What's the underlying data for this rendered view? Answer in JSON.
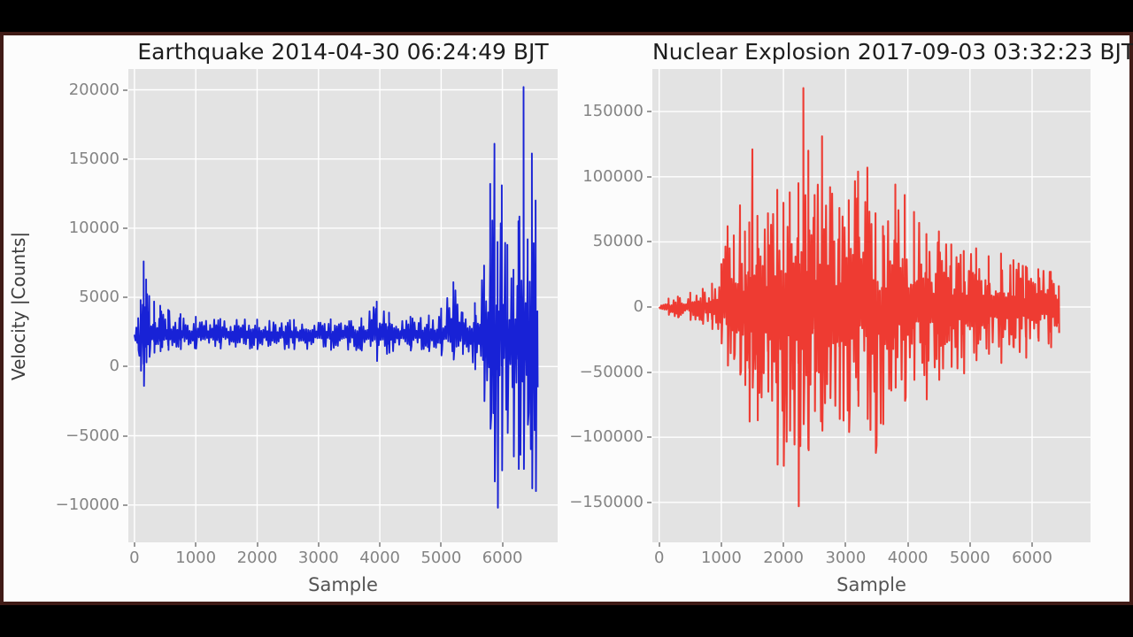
{
  "style": {
    "figure_background": "#fcfcfc",
    "letterbox_color": "#000000",
    "frame_border_color": "#401b16",
    "plot_background": "#e3e3e3",
    "grid_color": "#ffffff",
    "tick_color": "#848484"
  },
  "chart_data": [
    {
      "type": "line",
      "title": "Earthquake 2014-04-30 06:24:49 BJT",
      "xlabel": "Sample",
      "ylabel": "Velocity |Counts|",
      "line_color": "#1822d6",
      "xlim": [
        -100,
        6900
      ],
      "ylim": [
        -12700,
        21500
      ],
      "xticks": [
        0,
        1000,
        2000,
        3000,
        4000,
        5000,
        6000
      ],
      "xtick_labels": [
        "0",
        "1000",
        "2000",
        "3000",
        "4000",
        "5000",
        "6000"
      ],
      "yticks": [
        -10000,
        -5000,
        0,
        5000,
        10000,
        15000,
        20000
      ],
      "ytick_labels": [
        "−10000",
        "−5000",
        "0",
        "5000",
        "10000",
        "15000",
        "20000"
      ],
      "grid": true,
      "baseline": 2300,
      "seed": 11,
      "envelope": [
        [
          0,
          1500,
          3200
        ],
        [
          60,
          1200,
          3500
        ],
        [
          100,
          -300,
          4800
        ],
        [
          150,
          -1400,
          7600
        ],
        [
          190,
          300,
          6300
        ],
        [
          240,
          700,
          5100
        ],
        [
          320,
          1000,
          4700
        ],
        [
          420,
          1100,
          4400
        ],
        [
          550,
          1200,
          4100
        ],
        [
          750,
          1250,
          3800
        ],
        [
          1000,
          1300,
          3600
        ],
        [
          1400,
          1300,
          3450
        ],
        [
          2000,
          1250,
          3400
        ],
        [
          2600,
          1250,
          3380
        ],
        [
          3200,
          1200,
          3420
        ],
        [
          3700,
          1150,
          3500
        ],
        [
          3950,
          400,
          4700
        ],
        [
          4150,
          1000,
          3900
        ],
        [
          4500,
          1150,
          3600
        ],
        [
          4800,
          1100,
          3700
        ],
        [
          5000,
          800,
          4200
        ],
        [
          5200,
          500,
          6100
        ],
        [
          5350,
          900,
          3900
        ],
        [
          5550,
          -200,
          4600
        ],
        [
          5700,
          -2500,
          7300
        ],
        [
          5800,
          -4500,
          13200
        ],
        [
          5870,
          -8300,
          16100
        ],
        [
          5920,
          -10200,
          9000
        ],
        [
          5990,
          -7500,
          13100
        ],
        [
          6080,
          -4800,
          8800
        ],
        [
          6180,
          -6500,
          7000
        ],
        [
          6260,
          -7400,
          10500
        ],
        [
          6345,
          -7400,
          20200
        ],
        [
          6410,
          -4200,
          9200
        ],
        [
          6480,
          -8800,
          15400
        ],
        [
          6540,
          -9000,
          12000
        ],
        [
          6570,
          -1500,
          4000
        ]
      ]
    },
    {
      "type": "line",
      "title": "Nuclear Explosion 2017-09-03 03:32:23 BJT",
      "xlabel": "Sample",
      "ylabel": "",
      "line_color": "#ee3b32",
      "xlim": [
        -110,
        6940
      ],
      "ylim": [
        -180700,
        182700
      ],
      "xticks": [
        0,
        1000,
        2000,
        3000,
        4000,
        5000,
        6000
      ],
      "xtick_labels": [
        "0",
        "1000",
        "2000",
        "3000",
        "4000",
        "5000",
        "6000"
      ],
      "yticks": [
        -150000,
        -100000,
        -50000,
        0,
        50000,
        100000,
        150000
      ],
      "ytick_labels": [
        "−150000",
        "−100000",
        "−50000",
        "0",
        "50000",
        "100000",
        "150000"
      ],
      "grid": true,
      "baseline": 0,
      "seed": 29,
      "envelope": [
        [
          0,
          -4000,
          4500
        ],
        [
          150,
          -6000,
          6500
        ],
        [
          300,
          -8000,
          8000
        ],
        [
          500,
          -10000,
          11000
        ],
        [
          700,
          -13000,
          14000
        ],
        [
          850,
          -17000,
          18000
        ],
        [
          1000,
          -28000,
          33000
        ],
        [
          1100,
          -45000,
          62000
        ],
        [
          1200,
          -40000,
          55000
        ],
        [
          1300,
          -52000,
          78000
        ],
        [
          1380,
          -60000,
          58000
        ],
        [
          1450,
          -88000,
          65000
        ],
        [
          1500,
          -62000,
          121000
        ],
        [
          1580,
          -87000,
          70000
        ],
        [
          1750,
          -65000,
          72000
        ],
        [
          1900,
          -121000,
          90000
        ],
        [
          2000,
          -122000,
          80000
        ],
        [
          2100,
          -95000,
          88000
        ],
        [
          2240,
          -153000,
          95000
        ],
        [
          2320,
          -90000,
          168000
        ],
        [
          2400,
          -110000,
          120000
        ],
        [
          2500,
          -80000,
          86000
        ],
        [
          2620,
          -95000,
          131000
        ],
        [
          2750,
          -70000,
          92000
        ],
        [
          2900,
          -86000,
          76000
        ],
        [
          3050,
          -96000,
          82000
        ],
        [
          3200,
          -76000,
          104000
        ],
        [
          3350,
          -86000,
          107000
        ],
        [
          3480,
          -112000,
          72000
        ],
        [
          3600,
          -90000,
          62000
        ],
        [
          3800,
          -62000,
          94000
        ],
        [
          3950,
          -72000,
          86000
        ],
        [
          4100,
          -56000,
          73000
        ],
        [
          4300,
          -71000,
          56000
        ],
        [
          4500,
          -56000,
          58000
        ],
        [
          4700,
          -46000,
          48000
        ],
        [
          4900,
          -51000,
          43000
        ],
        [
          5100,
          -41000,
          45000
        ],
        [
          5300,
          -36000,
          39000
        ],
        [
          5500,
          -43000,
          41000
        ],
        [
          5700,
          -31000,
          36000
        ],
        [
          5900,
          -39000,
          31000
        ],
        [
          6100,
          -26000,
          29000
        ],
        [
          6300,
          -31000,
          27000
        ],
        [
          6430,
          -20000,
          16000
        ]
      ]
    }
  ]
}
